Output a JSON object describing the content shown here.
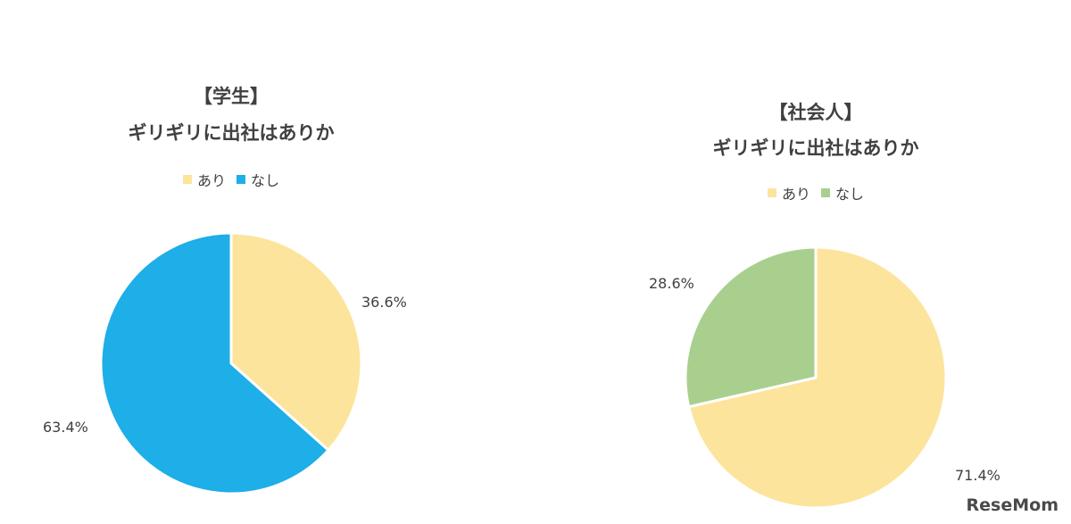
{
  "chart_data": [
    {
      "type": "pie",
      "title_line1": "【学生】",
      "title_line2": "ギリギリに出社はありか",
      "legend": [
        "あり",
        "なし"
      ],
      "series": [
        {
          "name": "あり",
          "value": 36.6,
          "label": "36.6%",
          "color": "#FCE49C"
        },
        {
          "name": "なし",
          "value": 63.4,
          "label": "63.4%",
          "color": "#1EAEE8"
        }
      ]
    },
    {
      "type": "pie",
      "title_line1": "【社会人】",
      "title_line2": "ギリギリに出社はありか",
      "legend": [
        "あり",
        "なし"
      ],
      "series": [
        {
          "name": "あり",
          "value": 71.4,
          "label": "71.4%",
          "color": "#FCE49C"
        },
        {
          "name": "なし",
          "value": 28.6,
          "label": "28.6%",
          "color": "#A9CF8E"
        }
      ]
    }
  ],
  "watermark": "ReseMom"
}
